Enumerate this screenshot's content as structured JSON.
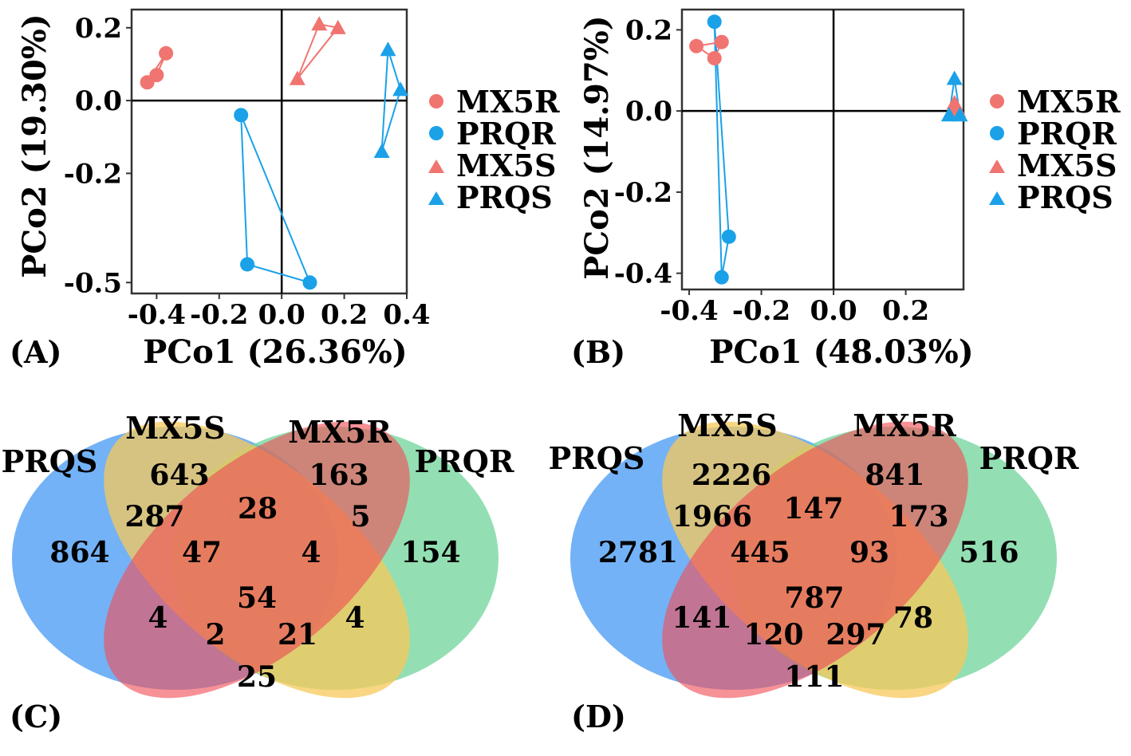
{
  "colors": {
    "MX5": "#F07470",
    "PRQ": "#1AA1E8",
    "venn_PRQS": "#5AA5F5",
    "venn_MX5S": "#F7C85A",
    "venn_MX5R": "#F04E55",
    "venn_PRQR": "#6FD49A"
  },
  "panels": [
    {
      "label": "(A)"
    },
    {
      "label": "(B)"
    },
    {
      "label": "(C)"
    },
    {
      "label": "(D)"
    }
  ],
  "chart_data": [
    {
      "type": "scatter",
      "panel": "(A)",
      "xlabel": "PCo1 (26.36%)",
      "ylabel": "PCo2 (19.30%)",
      "xlim": [
        -0.48,
        0.4
      ],
      "ylim": [
        -0.53,
        0.25
      ],
      "xticks": [
        -0.4,
        -0.2,
        0.0,
        0.2,
        0.4
      ],
      "xtick_labels": [
        "-0.4",
        "-0.2",
        "0.0",
        "0.2",
        "0.4"
      ],
      "yticks": [
        0.2,
        0.0,
        -0.2,
        -0.5
      ],
      "ytick_labels": [
        "0.2",
        "0.0",
        "-0.2",
        "-0.5"
      ],
      "legend": [
        "MX5R",
        "PRQR",
        "MX5S",
        "PRQS"
      ],
      "series": [
        {
          "name": "MX5R",
          "marker": "circle",
          "color": "#F07470",
          "points": [
            [
              -0.37,
              0.13
            ],
            [
              -0.4,
              0.07
            ],
            [
              -0.43,
              0.05
            ]
          ],
          "hull": [
            0,
            1,
            2
          ]
        },
        {
          "name": "PRQR",
          "marker": "circle",
          "color": "#1AA1E8",
          "points": [
            [
              -0.13,
              -0.04
            ],
            [
              -0.11,
              -0.45
            ],
            [
              0.09,
              -0.5
            ]
          ],
          "hull": [
            0,
            1,
            2
          ]
        },
        {
          "name": "MX5S",
          "marker": "triangle",
          "color": "#F07470",
          "points": [
            [
              0.12,
              0.21
            ],
            [
              0.18,
              0.2
            ],
            [
              0.05,
              0.06
            ]
          ],
          "hull": [
            0,
            1,
            2
          ]
        },
        {
          "name": "PRQS",
          "marker": "triangle",
          "color": "#1AA1E8",
          "points": [
            [
              0.34,
              0.14
            ],
            [
              0.38,
              0.03
            ],
            [
              0.32,
              -0.14
            ]
          ],
          "hull": [
            0,
            1,
            2
          ]
        }
      ]
    },
    {
      "type": "scatter",
      "panel": "(B)",
      "xlabel": "PCo1 (48.03%)",
      "ylabel": "PCo2 (14.97%)",
      "xlim": [
        -0.42,
        0.36
      ],
      "ylim": [
        -0.44,
        0.25
      ],
      "xticks": [
        -0.4,
        -0.2,
        0.0,
        0.2
      ],
      "xtick_labels": [
        "-0.4",
        "-0.2",
        "0.0",
        "0.2"
      ],
      "yticks": [
        0.2,
        0.0,
        -0.2,
        -0.4
      ],
      "ytick_labels": [
        "0.2",
        "0.0",
        "-0.2",
        "-0.4"
      ],
      "legend": [
        "MX5R",
        "PRQR",
        "MX5S",
        "PRQS"
      ],
      "series": [
        {
          "name": "MX5R",
          "marker": "circle",
          "color": "#F07470",
          "points": [
            [
              -0.38,
              0.16
            ],
            [
              -0.33,
              0.13
            ],
            [
              -0.31,
              0.17
            ]
          ],
          "hull": [
            0,
            1,
            2
          ]
        },
        {
          "name": "PRQR",
          "marker": "circle",
          "color": "#1AA1E8",
          "points": [
            [
              -0.33,
              0.22
            ],
            [
              -0.29,
              -0.31
            ],
            [
              -0.31,
              -0.41
            ]
          ],
          "hull": [
            0,
            1,
            2
          ]
        },
        {
          "name": "MX5S",
          "marker": "triangle",
          "color": "#F07470",
          "points": [
            [
              0.335,
              0.02
            ],
            [
              0.345,
              0.0
            ],
            [
              0.34,
              0.01
            ]
          ],
          "hull": [
            0,
            1,
            2
          ]
        },
        {
          "name": "PRQS",
          "marker": "triangle",
          "color": "#1AA1E8",
          "points": [
            [
              0.335,
              0.08
            ],
            [
              0.32,
              -0.01
            ],
            [
              0.35,
              -0.01
            ]
          ],
          "hull": [
            0,
            1,
            2
          ]
        }
      ]
    },
    {
      "type": "venn",
      "panel": "(C)",
      "sets": [
        "PRQS",
        "MX5S",
        "MX5R",
        "PRQR"
      ],
      "regions": [
        {
          "sets": [
            "PRQS"
          ],
          "value": "864"
        },
        {
          "sets": [
            "MX5S"
          ],
          "value": "643"
        },
        {
          "sets": [
            "MX5R"
          ],
          "value": "163"
        },
        {
          "sets": [
            "PRQR"
          ],
          "value": "154"
        },
        {
          "sets": [
            "PRQS",
            "MX5S"
          ],
          "value": "287"
        },
        {
          "sets": [
            "MX5S",
            "MX5R"
          ],
          "value": "28"
        },
        {
          "sets": [
            "MX5R",
            "PRQR"
          ],
          "value": "5"
        },
        {
          "sets": [
            "PRQS",
            "MX5S",
            "MX5R"
          ],
          "value": "47"
        },
        {
          "sets": [
            "MX5S",
            "MX5R",
            "PRQR"
          ],
          "value": "4"
        },
        {
          "sets": [
            "PRQS",
            "MX5S",
            "MX5R",
            "PRQR"
          ],
          "value": "54"
        },
        {
          "sets": [
            "PRQS",
            "MX5R"
          ],
          "value": "4"
        },
        {
          "sets": [
            "MX5S",
            "PRQR"
          ],
          "value": "4"
        },
        {
          "sets": [
            "PRQS",
            "MX5R",
            "PRQR"
          ],
          "value": "2"
        },
        {
          "sets": [
            "PRQS",
            "MX5S",
            "PRQR"
          ],
          "value": "21"
        },
        {
          "sets": [
            "PRQS",
            "PRQR"
          ],
          "value": "25"
        }
      ]
    },
    {
      "type": "venn",
      "panel": "(D)",
      "sets": [
        "PRQS",
        "MX5S",
        "MX5R",
        "PRQR"
      ],
      "regions": [
        {
          "sets": [
            "PRQS"
          ],
          "value": "2781"
        },
        {
          "sets": [
            "MX5S"
          ],
          "value": "2226"
        },
        {
          "sets": [
            "MX5R"
          ],
          "value": "841"
        },
        {
          "sets": [
            "PRQR"
          ],
          "value": "516"
        },
        {
          "sets": [
            "PRQS",
            "MX5S"
          ],
          "value": "1966"
        },
        {
          "sets": [
            "MX5S",
            "MX5R"
          ],
          "value": "147"
        },
        {
          "sets": [
            "MX5R",
            "PRQR"
          ],
          "value": "173"
        },
        {
          "sets": [
            "PRQS",
            "MX5S",
            "MX5R"
          ],
          "value": "445"
        },
        {
          "sets": [
            "MX5S",
            "MX5R",
            "PRQR"
          ],
          "value": "93"
        },
        {
          "sets": [
            "PRQS",
            "MX5S",
            "MX5R",
            "PRQR"
          ],
          "value": "787"
        },
        {
          "sets": [
            "PRQS",
            "MX5R"
          ],
          "value": "141"
        },
        {
          "sets": [
            "MX5S",
            "PRQR"
          ],
          "value": "78"
        },
        {
          "sets": [
            "PRQS",
            "MX5R",
            "PRQR"
          ],
          "value": "120"
        },
        {
          "sets": [
            "PRQS",
            "MX5S",
            "PRQR"
          ],
          "value": "297"
        },
        {
          "sets": [
            "PRQS",
            "PRQR"
          ],
          "value": "111"
        }
      ]
    }
  ]
}
